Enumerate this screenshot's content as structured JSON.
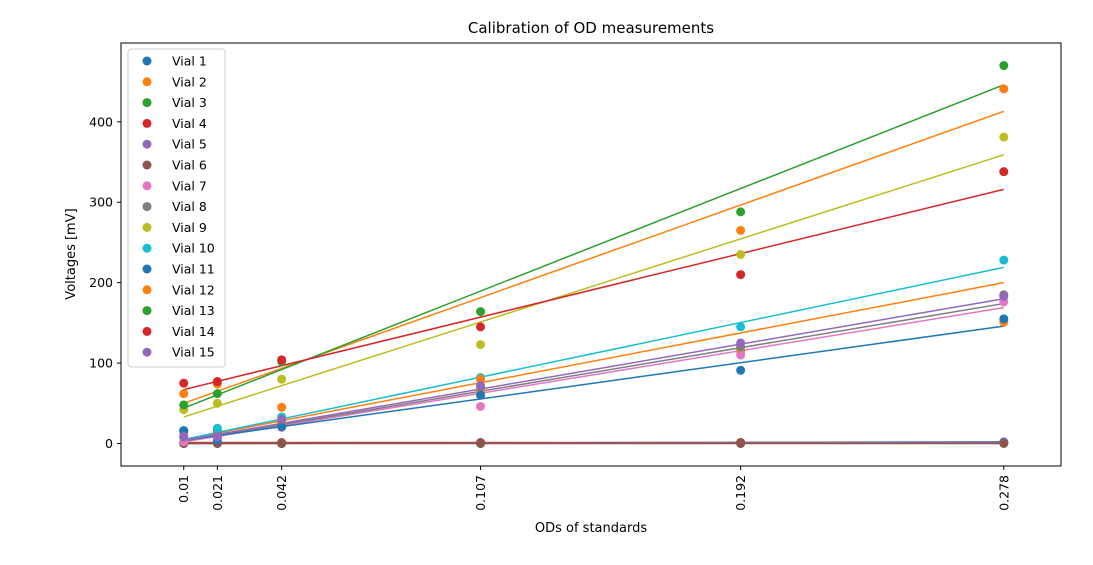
{
  "chart_data": {
    "type": "scatter",
    "title": "Calibration of OD measurements",
    "xlabel": "ODs of standards",
    "ylabel": "Voltages [mV]",
    "x": [
      0.01,
      0.021,
      0.042,
      0.107,
      0.192,
      0.278
    ],
    "x_tick_labels": [
      "0.01",
      "0.021",
      "0.042",
      "0.107",
      "0.192",
      "0.278"
    ],
    "xlim": [
      -0.0105,
      0.2967
    ],
    "ylim": [
      -28,
      498
    ],
    "y_ticks": [
      0,
      100,
      200,
      300,
      400
    ],
    "grid": false,
    "legend_position": "top-left",
    "series": [
      {
        "name": "Vial 1",
        "color": "#1f77b4",
        "values": [
          0,
          0,
          0,
          1,
          1,
          2
        ],
        "fit": [
          0,
          2
        ]
      },
      {
        "name": "Vial 2",
        "color": "#ff7f0e",
        "values": [
          14,
          16,
          26,
          65,
          115,
          151
        ],
        "fit": [
          5,
          200
        ]
      },
      {
        "name": "Vial 3",
        "color": "#2ca02c",
        "values": [
          1,
          1,
          1,
          1,
          1,
          1
        ],
        "fit": [
          1,
          1
        ]
      },
      {
        "name": "Vial 4",
        "color": "#d62728",
        "values": [
          1,
          1,
          1,
          1,
          1,
          1
        ],
        "fit": [
          1,
          1
        ]
      },
      {
        "name": "Vial 5",
        "color": "#9467bd",
        "values": [
          0,
          0,
          0,
          0,
          0,
          1
        ],
        "fit": [
          0,
          1
        ]
      },
      {
        "name": "Vial 6",
        "color": "#8c564b",
        "values": [
          0,
          0,
          0,
          0,
          0,
          0
        ],
        "fit": [
          0,
          0
        ]
      },
      {
        "name": "Vial 7",
        "color": "#e377c2",
        "values": [
          2,
          7,
          20,
          46,
          110,
          176
        ],
        "fit": [
          2,
          169
        ]
      },
      {
        "name": "Vial 8",
        "color": "#7f7f7f",
        "values": [
          8,
          14,
          30,
          70,
          120,
          185
        ],
        "fit": [
          3,
          174
        ]
      },
      {
        "name": "Vial 9",
        "color": "#bcbd22",
        "values": [
          42,
          50,
          80,
          123,
          235,
          381
        ],
        "fit": [
          33,
          359
        ]
      },
      {
        "name": "Vial 10",
        "color": "#17becf",
        "values": [
          16,
          19,
          33,
          82,
          145,
          228
        ],
        "fit": [
          5,
          219
        ]
      },
      {
        "name": "Vial 11",
        "color": "#1f77b4",
        "values": [
          16,
          4,
          21,
          60,
          91,
          155
        ],
        "fit": [
          4,
          146
        ]
      },
      {
        "name": "Vial 12",
        "color": "#ff7f0e",
        "values": [
          62,
          74,
          45,
          80,
          265,
          441
        ],
        "fit": [
          50,
          413
        ]
      },
      {
        "name": "Vial 13",
        "color": "#2ca02c",
        "values": [
          48,
          62,
          102,
          164,
          288,
          470
        ],
        "fit": [
          44,
          446
        ]
      },
      {
        "name": "Vial 14",
        "color": "#d62728",
        "values": [
          75,
          77,
          104,
          145,
          210,
          338
        ],
        "fit": [
          67,
          316
        ]
      },
      {
        "name": "Vial 15",
        "color": "#9467bd",
        "values": [
          9,
          8,
          30,
          72,
          125,
          183
        ],
        "fit": [
          4,
          180
        ]
      }
    ]
  }
}
